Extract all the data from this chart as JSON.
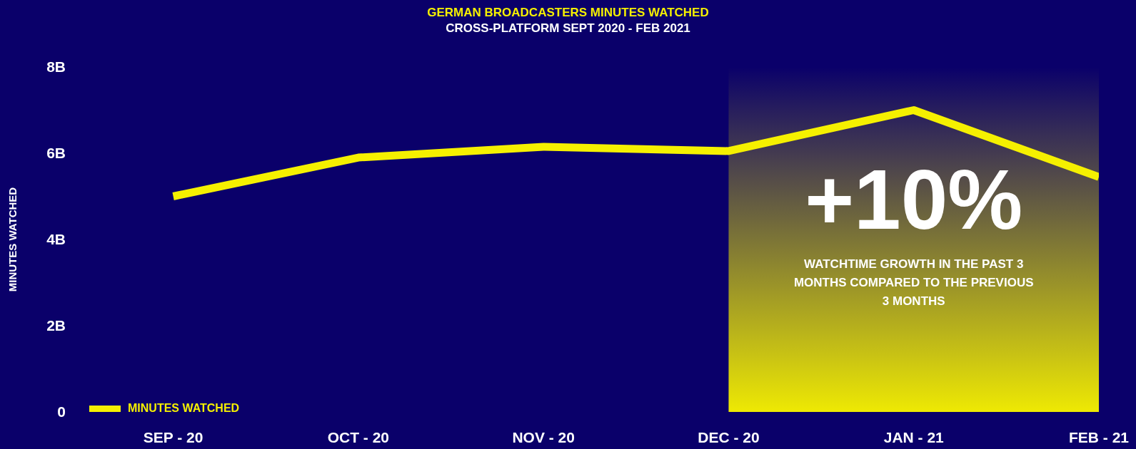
{
  "chart_data": {
    "type": "line",
    "title": "GERMAN BROADCASTERS MINUTES WATCHED",
    "subtitle": "CROSS-PLATFORM SEPT 2020 - FEB 2021",
    "ylabel": "MINUTES WATCHED",
    "categories": [
      "SEP - 20",
      "OCT - 20",
      "NOV - 20",
      "DEC - 20",
      "JAN - 21",
      "FEB - 21"
    ],
    "series": [
      {
        "name": "MINUTES WATCHED",
        "color": "#f5f000",
        "values": [
          5.0,
          5.9,
          6.15,
          6.05,
          7.0,
          5.45
        ]
      }
    ],
    "ylim": [
      0,
      8
    ],
    "yticks": [
      0,
      {
        "value": 2,
        "label": "2B"
      },
      {
        "value": 4,
        "label": "4B"
      },
      {
        "value": 6,
        "label": "6B"
      },
      {
        "value": 8,
        "label": "8B"
      }
    ],
    "bands": [
      {
        "axis": "x",
        "from": "DEC - 20",
        "to": "FEB - 21",
        "label": "+10%",
        "color": "#f5f000"
      }
    ],
    "annotations": [
      "WATCHTIME GROWTH IN THE PAST 3 MONTHS COMPARED TO THE PREVIOUS 3 MONTHS"
    ],
    "grid": false,
    "legend": "bottom left",
    "marker": "none",
    "line_style": "solid"
  }
}
